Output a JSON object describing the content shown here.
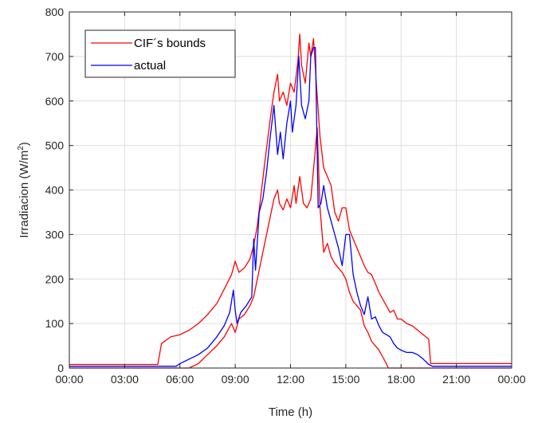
{
  "chart_data": {
    "type": "line",
    "title": "",
    "xlabel": "Time (h)",
    "ylabel_main": "Irradiacion (W/m",
    "ylabel_sup": "2",
    "ylabel_close": ")",
    "xlim": [
      0,
      24
    ],
    "ylim": [
      0,
      800
    ],
    "grid": true,
    "legend_position": "top-left",
    "x_ticks": [
      0,
      3,
      6,
      9,
      12,
      15,
      18,
      21,
      24
    ],
    "x_tick_labels": [
      "00:00",
      "03:00",
      "06:00",
      "09:00",
      "12:00",
      "15:00",
      "18:00",
      "21:00",
      "00:00"
    ],
    "y_ticks": [
      0,
      100,
      200,
      300,
      400,
      500,
      600,
      700,
      800
    ],
    "y_tick_labels": [
      "0",
      "100",
      "200",
      "300",
      "400",
      "500",
      "600",
      "700",
      "800"
    ],
    "legend": [
      {
        "label": "CIF´s bounds",
        "color": "#ff0000"
      },
      {
        "label": "actual",
        "color": "#0000ff"
      }
    ],
    "series": [
      {
        "name": "CIF´s bounds",
        "role": "upper",
        "color": "#ff0000",
        "points": [
          [
            0,
            8
          ],
          [
            4.8,
            8
          ],
          [
            5,
            55
          ],
          [
            5.5,
            70
          ],
          [
            6,
            75
          ],
          [
            6.5,
            85
          ],
          [
            7,
            100
          ],
          [
            7.5,
            120
          ],
          [
            8,
            145
          ],
          [
            8.5,
            185
          ],
          [
            8.8,
            210
          ],
          [
            9,
            240
          ],
          [
            9.2,
            215
          ],
          [
            9.5,
            225
          ],
          [
            9.8,
            245
          ],
          [
            10,
            275
          ],
          [
            10.2,
            320
          ],
          [
            10.4,
            390
          ],
          [
            10.6,
            460
          ],
          [
            10.9,
            560
          ],
          [
            11.1,
            620
          ],
          [
            11.3,
            660
          ],
          [
            11.4,
            600
          ],
          [
            11.6,
            620
          ],
          [
            11.8,
            590
          ],
          [
            12,
            640
          ],
          [
            12.2,
            620
          ],
          [
            12.4,
            690
          ],
          [
            12.5,
            750
          ],
          [
            12.6,
            680
          ],
          [
            12.8,
            640
          ],
          [
            13,
            730
          ],
          [
            13.1,
            700
          ],
          [
            13.25,
            740
          ],
          [
            13.4,
            640
          ],
          [
            13.6,
            520
          ],
          [
            13.8,
            450
          ],
          [
            14,
            430
          ],
          [
            14.2,
            410
          ],
          [
            14.4,
            350
          ],
          [
            14.6,
            330
          ],
          [
            14.8,
            360
          ],
          [
            15,
            360
          ],
          [
            15.2,
            310
          ],
          [
            15.4,
            290
          ],
          [
            15.6,
            270
          ],
          [
            15.8,
            250
          ],
          [
            16,
            230
          ],
          [
            16.2,
            215
          ],
          [
            16.4,
            210
          ],
          [
            16.6,
            190
          ],
          [
            16.8,
            170
          ],
          [
            17,
            155
          ],
          [
            17.2,
            140
          ],
          [
            17.4,
            125
          ],
          [
            17.6,
            130
          ],
          [
            17.8,
            110
          ],
          [
            18,
            110
          ],
          [
            18.3,
            100
          ],
          [
            18.6,
            95
          ],
          [
            18.9,
            85
          ],
          [
            19.2,
            75
          ],
          [
            19.5,
            65
          ],
          [
            19.6,
            10
          ],
          [
            24,
            10
          ]
        ]
      },
      {
        "name": "CIF´s bounds",
        "role": "lower",
        "color": "#ff0000",
        "points": [
          [
            0,
            0
          ],
          [
            6.5,
            0
          ],
          [
            7,
            10
          ],
          [
            7.5,
            30
          ],
          [
            8,
            50
          ],
          [
            8.4,
            70
          ],
          [
            8.8,
            100
          ],
          [
            9,
            80
          ],
          [
            9.2,
            110
          ],
          [
            9.5,
            120
          ],
          [
            9.8,
            140
          ],
          [
            10,
            160
          ],
          [
            10.2,
            200
          ],
          [
            10.4,
            240
          ],
          [
            10.6,
            280
          ],
          [
            10.9,
            340
          ],
          [
            11.1,
            380
          ],
          [
            11.3,
            400
          ],
          [
            11.4,
            370
          ],
          [
            11.6,
            355
          ],
          [
            11.8,
            380
          ],
          [
            12,
            360
          ],
          [
            12.2,
            410
          ],
          [
            12.3,
            370
          ],
          [
            12.5,
            430
          ],
          [
            12.7,
            370
          ],
          [
            12.9,
            360
          ],
          [
            13.1,
            380
          ],
          [
            13.3,
            470
          ],
          [
            13.45,
            540
          ],
          [
            13.6,
            360
          ],
          [
            13.8,
            260
          ],
          [
            14,
            280
          ],
          [
            14.2,
            250
          ],
          [
            14.4,
            235
          ],
          [
            14.6,
            225
          ],
          [
            14.8,
            215
          ],
          [
            15,
            200
          ],
          [
            15.2,
            170
          ],
          [
            15.4,
            150
          ],
          [
            15.6,
            140
          ],
          [
            15.8,
            130
          ],
          [
            16,
            95
          ],
          [
            16.2,
            80
          ],
          [
            16.4,
            60
          ],
          [
            16.6,
            50
          ],
          [
            16.8,
            40
          ],
          [
            17,
            25
          ],
          [
            17.2,
            10
          ],
          [
            17.3,
            0
          ],
          [
            24,
            0
          ]
        ]
      },
      {
        "name": "actual",
        "role": "actual",
        "color": "#0000ff",
        "points": [
          [
            0,
            4
          ],
          [
            5.8,
            4
          ],
          [
            6,
            10
          ],
          [
            6.5,
            20
          ],
          [
            7,
            30
          ],
          [
            7.5,
            45
          ],
          [
            8,
            70
          ],
          [
            8.4,
            95
          ],
          [
            8.7,
            125
          ],
          [
            8.9,
            175
          ],
          [
            9,
            130
          ],
          [
            9.1,
            100
          ],
          [
            9.3,
            125
          ],
          [
            9.6,
            140
          ],
          [
            9.9,
            160
          ],
          [
            10,
            290
          ],
          [
            10.1,
            220
          ],
          [
            10.3,
            350
          ],
          [
            10.5,
            380
          ],
          [
            10.7,
            440
          ],
          [
            10.9,
            520
          ],
          [
            11.1,
            590
          ],
          [
            11.3,
            480
          ],
          [
            11.45,
            530
          ],
          [
            11.6,
            470
          ],
          [
            11.8,
            550
          ],
          [
            12,
            600
          ],
          [
            12.1,
            530
          ],
          [
            12.3,
            590
          ],
          [
            12.45,
            700
          ],
          [
            12.6,
            590
          ],
          [
            12.8,
            560
          ],
          [
            13,
            600
          ],
          [
            13.1,
            700
          ],
          [
            13.25,
            720
          ],
          [
            13.35,
            720
          ],
          [
            13.5,
            360
          ],
          [
            13.65,
            370
          ],
          [
            13.8,
            410
          ],
          [
            14,
            360
          ],
          [
            14.2,
            330
          ],
          [
            14.4,
            300
          ],
          [
            14.6,
            270
          ],
          [
            14.8,
            230
          ],
          [
            15,
            300
          ],
          [
            15.2,
            300
          ],
          [
            15.4,
            210
          ],
          [
            15.6,
            170
          ],
          [
            15.8,
            140
          ],
          [
            16,
            120
          ],
          [
            16.2,
            160
          ],
          [
            16.4,
            110
          ],
          [
            16.6,
            115
          ],
          [
            16.8,
            95
          ],
          [
            17,
            80
          ],
          [
            17.2,
            75
          ],
          [
            17.4,
            70
          ],
          [
            17.6,
            55
          ],
          [
            17.8,
            45
          ],
          [
            18,
            40
          ],
          [
            18.3,
            35
          ],
          [
            18.6,
            35
          ],
          [
            18.9,
            30
          ],
          [
            19.2,
            20
          ],
          [
            19.5,
            8
          ],
          [
            19.7,
            4
          ],
          [
            24,
            4
          ]
        ]
      }
    ]
  }
}
